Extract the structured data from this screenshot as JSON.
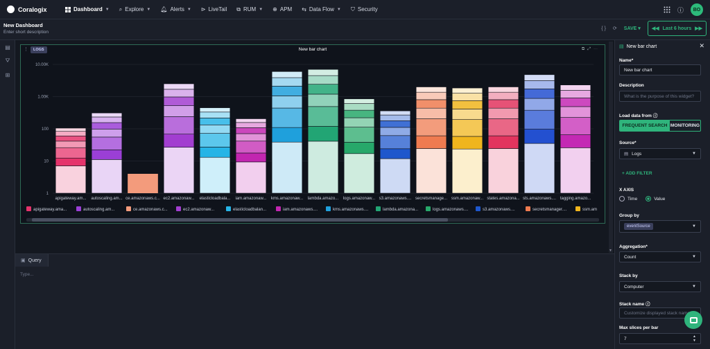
{
  "app": {
    "name": "Coralogix"
  },
  "nav": {
    "items": [
      {
        "label": "Dashboard",
        "active": true,
        "caret": true
      },
      {
        "label": "Explore",
        "caret": true
      },
      {
        "label": "Alerts",
        "caret": true
      },
      {
        "label": "LiveTail"
      },
      {
        "label": "RUM",
        "caret": true
      },
      {
        "label": "APM"
      },
      {
        "label": "Data Flow",
        "caret": true
      },
      {
        "label": "Security"
      }
    ],
    "avatar": "BO"
  },
  "dashboard": {
    "title": "New Dashboard",
    "description_placeholder": "Enter short description",
    "save_label": "SAVE",
    "time_range": "Last 6 hours"
  },
  "widget": {
    "badge": "LOGS",
    "title": "New bar chart"
  },
  "chart_data": {
    "type": "bar",
    "stacked": true,
    "yscale": "log",
    "yticks": [
      "10.00K",
      "1.00K",
      "100",
      "10",
      "1"
    ],
    "categories": [
      "apigateway.am...",
      "autoscaling.am...",
      "ce.amazonaws.c...",
      "ec2.amazonaw...",
      "elasticloadbala...",
      "iam.amazonaw...",
      "kms.amazonaw...",
      "lambda.amazo...",
      "logs.amazonaw...",
      "s3.amazonaws....",
      "secretsmanage...",
      "ssm.amazonaw...",
      "states.amazona...",
      "sts.amazonaws....",
      "tagging.amazo..."
    ],
    "totals": [
      105,
      310,
      4,
      2500,
      450,
      205,
      6000,
      7000,
      850,
      360,
      2000,
      1850,
      2000,
      4800,
      2300
    ],
    "base_colors": [
      "#e5336b",
      "#9b3fd6",
      "#f39b7c",
      "#a23ed0",
      "#26b4e6",
      "#c226b0",
      "#1fa0dc",
      "#22a574",
      "#27a86a",
      "#1e57cc",
      "#ef7b50",
      "#f0b51d",
      "#e2345e",
      "#2350d0",
      "#c429b4"
    ],
    "legend": [
      {
        "label": "apigateway.ama...",
        "color": "#e5336b"
      },
      {
        "label": "autoscaling.am...",
        "color": "#9b3fd6"
      },
      {
        "label": "ce.amazonaws.c...",
        "color": "#f39b7c"
      },
      {
        "label": "ec2.amazonaw...",
        "color": "#a23ed0"
      },
      {
        "label": "elasticloadbalan...",
        "color": "#26b4e6"
      },
      {
        "label": "iam.amazonaws....",
        "color": "#c226b0"
      },
      {
        "label": "kms.amazonaws....",
        "color": "#1fa0dc"
      },
      {
        "label": "lambda.amazona...",
        "color": "#22a574"
      },
      {
        "label": "logs.amazonaws....",
        "color": "#27a86a"
      },
      {
        "label": "s3.amazonaws....",
        "color": "#1e57cc"
      },
      {
        "label": "secretsmanager....",
        "color": "#ef7b50"
      },
      {
        "label": "ssm.am",
        "color": "#f0b51d"
      }
    ]
  },
  "query": {
    "tab_label": "Query",
    "placeholder": "Type..."
  },
  "panel": {
    "title": "New bar chart",
    "name_label": "Name*",
    "name_value": "New bar chart",
    "description_label": "Description",
    "description_placeholder": "What is the purpose of this widget?",
    "load_label": "Load data from",
    "load_options": [
      "FREQUENT SEARCH",
      "MONITORING"
    ],
    "source_label": "Source*",
    "source_value": "Logs",
    "add_filter": "ADD FILTER",
    "xaxis_label": "X AXIS",
    "xaxis_options": [
      "Time",
      "Value"
    ],
    "groupby_label": "Group by",
    "groupby_chip": "eventSource",
    "aggregation_label": "Aggregation*",
    "aggregation_value": "Count",
    "stackby_label": "Stack by",
    "stackby_value": "Computer",
    "stackname_label": "Stack name",
    "stackname_placeholder": "Customize displayed stack name",
    "maxslices_label": "Max slices per bar",
    "maxslices_value": "7"
  }
}
